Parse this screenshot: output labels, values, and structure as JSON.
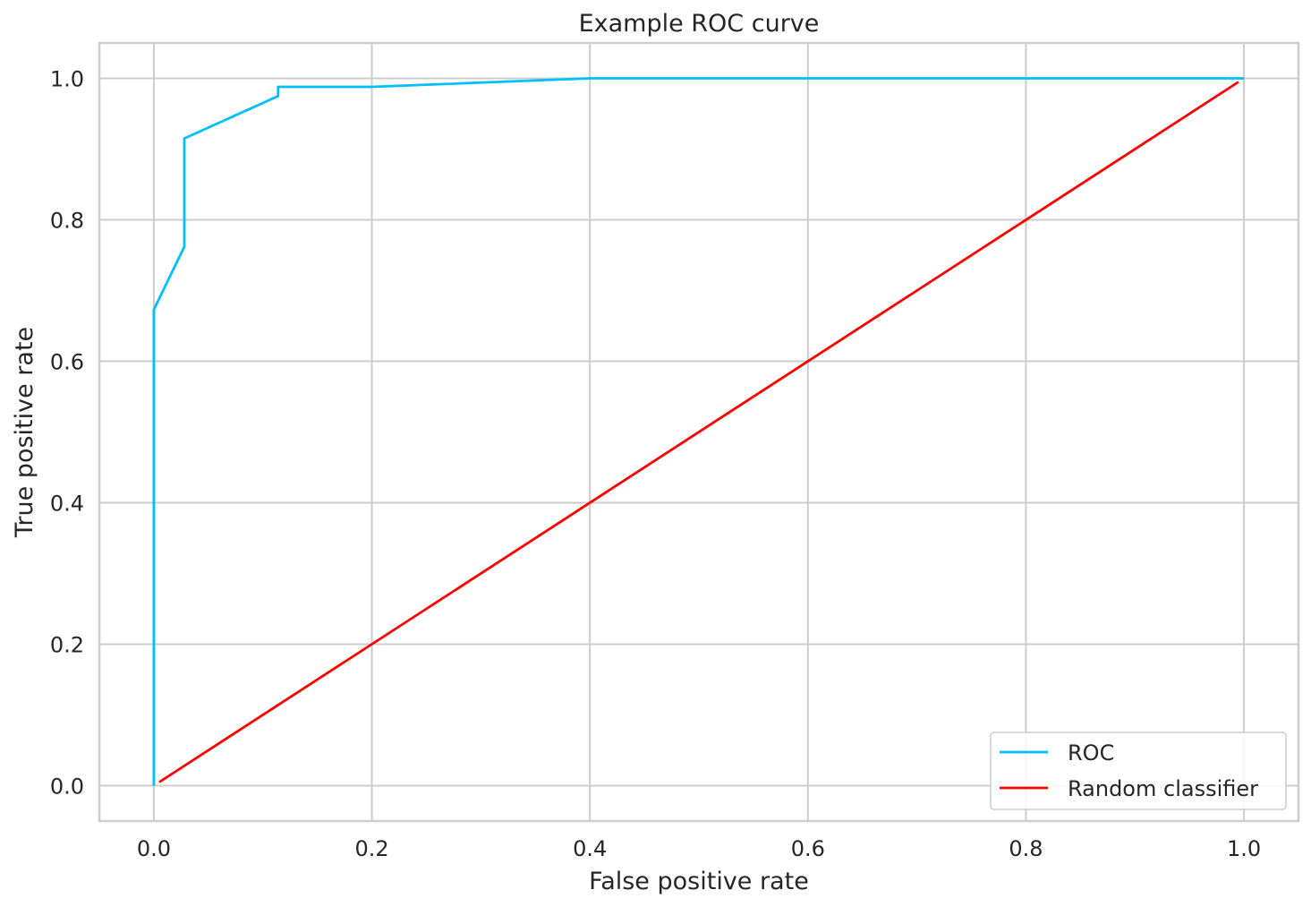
{
  "chart_data": {
    "type": "line",
    "title": "Example ROC curve",
    "xlabel": "False positive rate",
    "ylabel": "True positive rate",
    "xlim": [
      -0.05,
      1.05
    ],
    "ylim": [
      -0.05,
      1.05
    ],
    "x_ticks": [
      0.0,
      0.2,
      0.4,
      0.6,
      0.8,
      1.0
    ],
    "x_tick_labels": [
      "0.0",
      "0.2",
      "0.4",
      "0.6",
      "0.8",
      "1.0"
    ],
    "y_ticks": [
      0.0,
      0.2,
      0.4,
      0.6,
      0.8,
      1.0
    ],
    "y_tick_labels": [
      "0.0",
      "0.2",
      "0.4",
      "0.6",
      "0.8",
      "1.0"
    ],
    "grid": true,
    "legend_position": "bottom-right",
    "series": [
      {
        "name": "ROC",
        "color": "#00bfff",
        "x": [
          0.0,
          0.0,
          0.028,
          0.028,
          0.114,
          0.114,
          0.2,
          0.4,
          1.0
        ],
        "y": [
          0.0,
          0.673,
          0.762,
          0.915,
          0.975,
          0.988,
          0.988,
          1.0,
          1.0
        ]
      },
      {
        "name": "Random classifier",
        "color": "#ff0000",
        "x": [
          0.005,
          0.995
        ],
        "y": [
          0.005,
          0.995
        ]
      }
    ]
  }
}
